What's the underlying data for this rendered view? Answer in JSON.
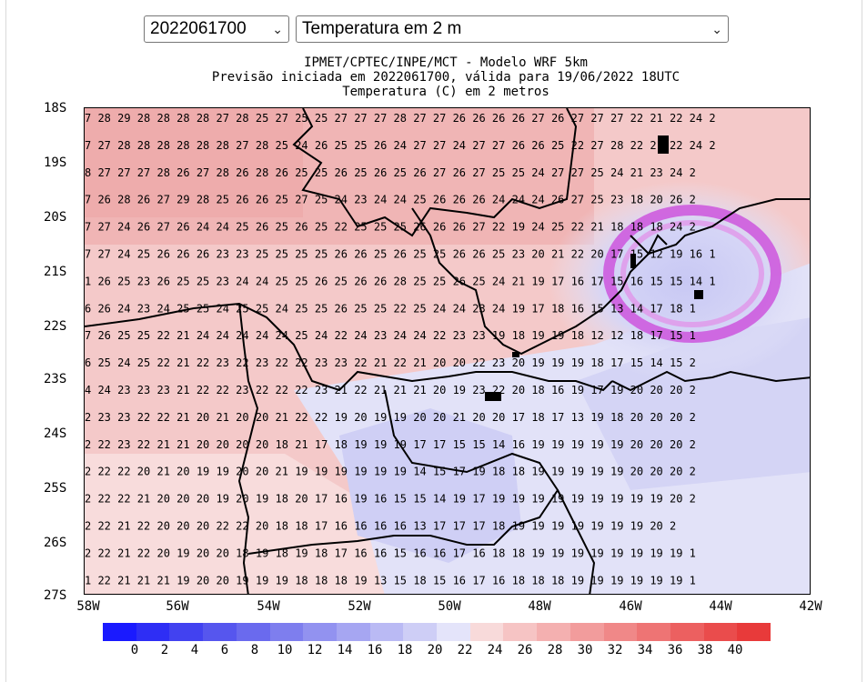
{
  "controls": {
    "run_select": {
      "value": "2022061700"
    },
    "variable_select": {
      "value": "Temperatura em 2 m"
    }
  },
  "map": {
    "title_line1": "IPMET/CPTEC/INPE/MCT - Modelo WRF 5km",
    "title_line2": "Previsão iniciada em 2022061700, válida para 19/06/2022 18UTC",
    "title_line3": "Temperatura (C) em 2 metros",
    "lat_labels": [
      "18S",
      "19S",
      "20S",
      "21S",
      "22S",
      "23S",
      "24S",
      "25S",
      "26S",
      "27S"
    ],
    "lon_labels": [
      "58W",
      "56W",
      "54W",
      "52W",
      "50W",
      "48W",
      "46W",
      "44W",
      "42W"
    ],
    "value_rows": [
      "7 28 29 28 28 28 28 27 28 25 27 25 25 27 27 27 28 27 27 26 26 26 26 27 26 27 27 27 22 21 22 24 2",
      "7 27 28 28 28 28 28 28 27 28 25 24 26 25 25 26 24 27 27 24 27 27 26 26 25 22 27 28 22 21 22 24 2",
      "8 27 27 27 28 26 27 28 26 28 26 25 25 26 25 26 25 26 27 26 27 25 25 24 27 27 25 24 21 23 24 2",
      "7 26 28 26 27 29 28 25 26 26 25 27 25 24 23 24 24 25 26 26 26 24 24 24 26 27 25 23 18 20 26 2",
      "7 27 24 26 27 26 24 24 25 26 25 26 25 22 25 25 25 26 26 26 27 22 19 24 25 22 21 18 18 18 24 2",
      "7 27 24 25 26 26 26 23 23 25 25 25 25 26 26 25 26 25 25 26 26 25 23 20 21 22 20 17 15 12 19 16 1",
      "1 26 25 23 26 25 25 23 24 24 25 25 26 25 26 26 28 25 25 26 25 24 21 19 17 16 17 15 16 15 15 14 1",
      "6 26 24 23 24 25 25 24 25 25 24 25 25 26 25 25 22 25 24 24 23 24 19 17 18 16 15 13 14 17 18 1",
      "7 26 25 25 22 21 24 24 24 24 24 25 24 22 24 23 24 24 22 23 23 19 18 19 19 18 12 12 18 17 15 1",
      "6 25 24 25 22 21 22 23 22 23 22 22 23 23 22 21 22 21 20 20 22 23 20 19 19 19 18 17 15 14 15 2",
      "4 24 23 23 23 21 22 22 23 22 22 22 23 21 22 21 21 21 20 19 23 22 20 18 16 19 17 19 20 20 20 2",
      "2 23 23 22 22 21 20 21 20 20 21 22 22 19 20 19 19 20 20 21 20 20 17 18 17 13 19 18 20 20 20 2",
      "2 22 23 22 21 21 20 20 20 20 18 21 17 18 19 19 19 17 17 15 15 14 16 19 19 19 19 19 20 20 20 2",
      "2 22 22 20 21 20 19 19 20 20 21 19 19 19 19 19 19 14 15 17 19 18 18 19 19 19 19 19 20 20 20 2",
      "2 22 22 21 20 20 20 19 20 19 18 20 17 16 19 16 15 15 14 19 17 19 19 19 19 19 19 19 19 19 20 2",
      "2 22 21 22 20 20 20 22 22 20 18 18 17 16 16 16 16 13 17 17 17 18 19 19 19 19 19 19 19 20 2",
      "2 22 21 22 20 19 20 20 18 19 18 19 18 17 16 16 15 16 16 17 16 18 18 19 19 19 19 19 19 19 19 1",
      "1 22 21 21 21 19 20 20 19 19 19 18 18 18 19 13 15 18 15 16 17 16 18 18 18 19 19 19 19 19 19 1",
      "1 21 21 21 21 20 20 19 20 20 21 20 18 17 16 17 17 17 17 17 18 18 18 19 19 19 19 19 19 19 19 1"
    ]
  },
  "colorbar": {
    "labels": [
      "0",
      "2",
      "4",
      "6",
      "8",
      "10",
      "12",
      "14",
      "16",
      "18",
      "20",
      "22",
      "24",
      "26",
      "28",
      "30",
      "32",
      "34",
      "36",
      "38",
      "40"
    ],
    "colors": [
      "#1a1aff",
      "#2e2ef5",
      "#4242f0",
      "#5656ee",
      "#6a6aee",
      "#7e7eee",
      "#9292f0",
      "#a6a6f2",
      "#babaf4",
      "#ceceF6",
      "#e4e4fa",
      "#f8dada",
      "#f6c4c4",
      "#f4b0b0",
      "#f29c9c",
      "#f08888",
      "#ee7474",
      "#ec6060",
      "#ea4c4c",
      "#e83a3a"
    ]
  }
}
